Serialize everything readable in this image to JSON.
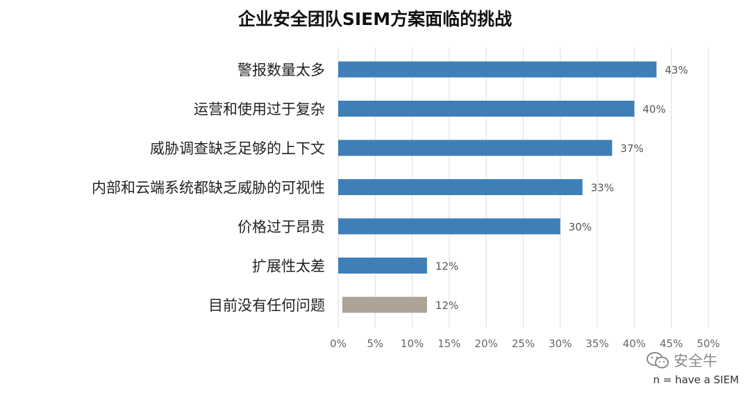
{
  "chart_data": {
    "type": "bar",
    "orientation": "horizontal",
    "title": "企业安全团队SIEM方案面临的挑战",
    "categories": [
      "警报数量太多",
      "运营和使用过于复杂",
      "威胁调查缺乏足够的上下文",
      "内部和云端系统都缺乏威胁的可视性",
      "价格过于昂贵",
      "扩展性太差",
      "目前没有任何问题"
    ],
    "values": [
      43,
      40,
      37,
      33,
      30,
      12,
      12
    ],
    "value_labels": [
      "43%",
      "40%",
      "37%",
      "33%",
      "30%",
      "12%",
      "12%"
    ],
    "bar_colors": [
      "#3f7fb8",
      "#3f7fb8",
      "#3f7fb8",
      "#3f7fb8",
      "#3f7fb8",
      "#3f7fb8",
      "#ada396"
    ],
    "xlim": [
      0,
      50
    ],
    "xticks": [
      0,
      5,
      10,
      15,
      20,
      25,
      30,
      35,
      40,
      45,
      50
    ],
    "xtick_labels": [
      "0%",
      "5%",
      "10%",
      "15%",
      "20%",
      "25%",
      "30%",
      "35%",
      "40%",
      "45%",
      "50%"
    ],
    "grid": "vertical",
    "grid_color": "#dcdcdc",
    "note": "n = have a SIEM"
  },
  "brand": {
    "name": "安全牛",
    "icon": "wechat-icon"
  }
}
